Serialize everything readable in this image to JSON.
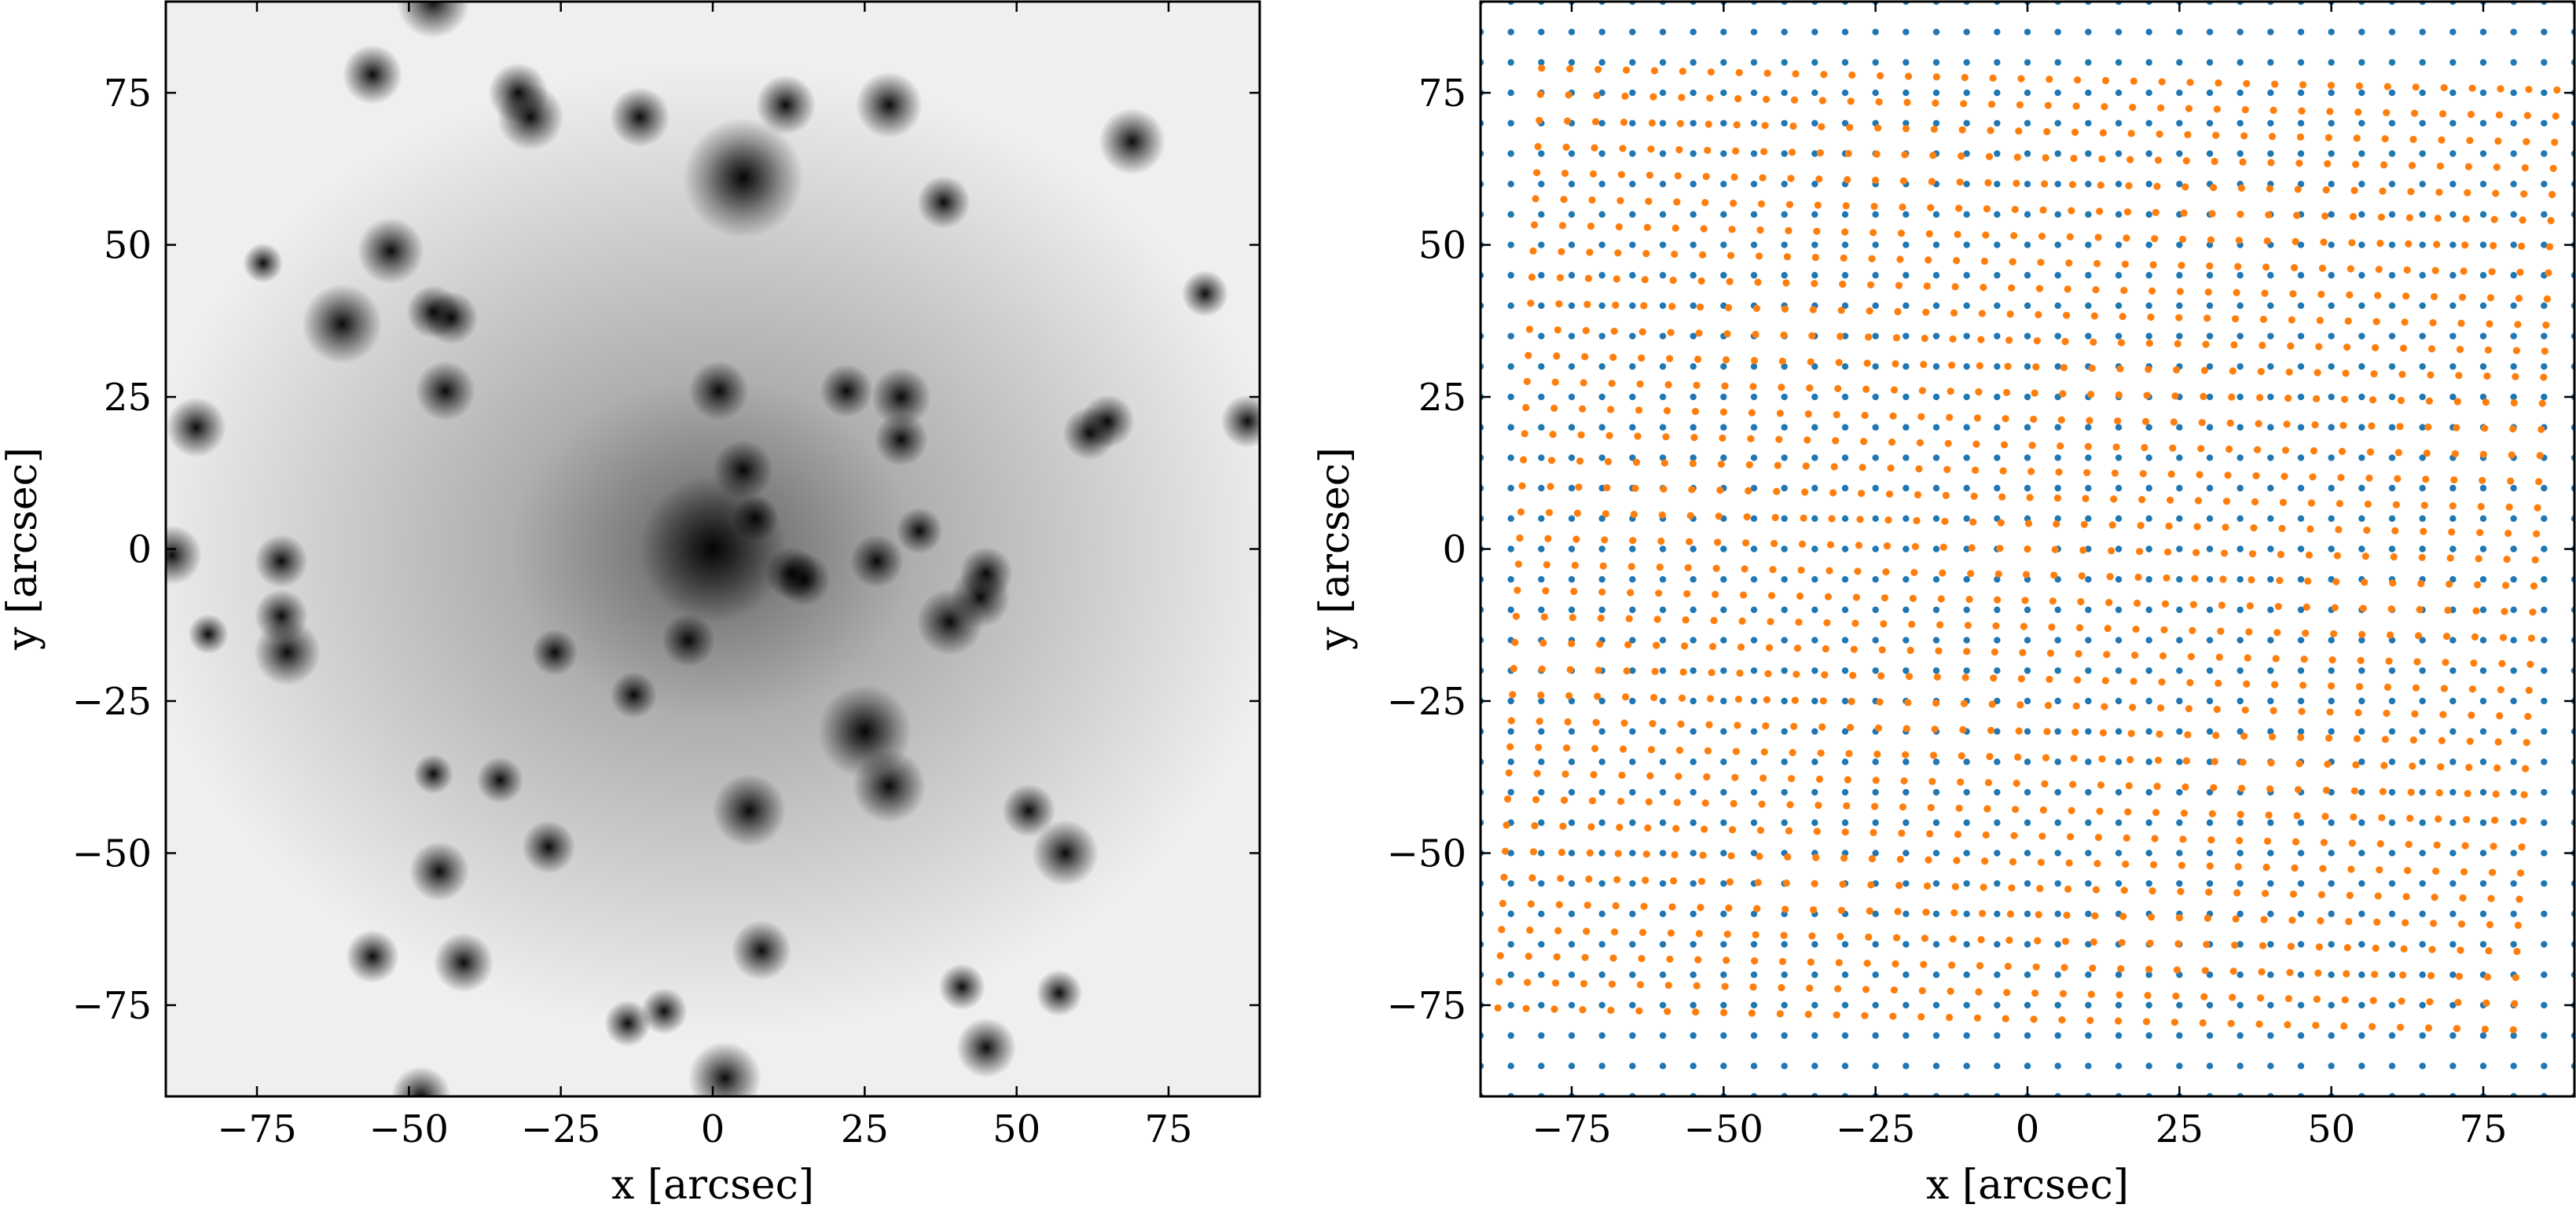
{
  "chart_data": [
    {
      "type": "heatmap",
      "title": "",
      "xlabel": "x [arcsec]",
      "ylabel": "y [arcsec]",
      "xlim": [
        -90,
        90
      ],
      "ylim": [
        -90,
        90
      ],
      "xticks": [
        -75,
        -50,
        -25,
        0,
        25,
        50,
        75
      ],
      "yticks": [
        -75,
        -50,
        -25,
        0,
        25,
        50,
        75
      ],
      "xticklabels": [
        "−75",
        "−50",
        "−25",
        "0",
        "25",
        "50",
        "75"
      ],
      "yticklabels": [
        "−75",
        "−50",
        "−25",
        "0",
        "25",
        "50",
        "75"
      ],
      "grid": false,
      "colormap": "gray_r",
      "halos": [
        {
          "x": 0,
          "y": 0,
          "rx": 95,
          "ry": 80,
          "strength": 0.6
        },
        {
          "x": 5,
          "y": 61,
          "rx": 6,
          "ry": 6,
          "strength": 0.28
        },
        {
          "x": 25,
          "y": -30,
          "rx": 5,
          "ry": 5,
          "strength": 0.25
        }
      ],
      "galaxies": [
        {
          "x": 0,
          "y": 0,
          "r": 2.2
        },
        {
          "x": 5,
          "y": 61,
          "r": 1.8
        },
        {
          "x": -46,
          "y": 90,
          "r": 1.1
        },
        {
          "x": -56,
          "y": 78,
          "r": 0.9
        },
        {
          "x": -32,
          "y": 75,
          "r": 0.9
        },
        {
          "x": -30,
          "y": 71,
          "r": 1.0
        },
        {
          "x": -12,
          "y": 71,
          "r": 0.9
        },
        {
          "x": 12,
          "y": 73,
          "r": 0.9
        },
        {
          "x": 29,
          "y": 73,
          "r": 1.0
        },
        {
          "x": 69,
          "y": 67,
          "r": 1.0
        },
        {
          "x": 38,
          "y": 57,
          "r": 0.8
        },
        {
          "x": -53,
          "y": 49,
          "r": 1.0
        },
        {
          "x": -74,
          "y": 47,
          "r": 0.6
        },
        {
          "x": -61,
          "y": 37,
          "r": 1.2
        },
        {
          "x": -46,
          "y": 39,
          "r": 0.8
        },
        {
          "x": -43,
          "y": 38,
          "r": 0.8
        },
        {
          "x": -44,
          "y": 26,
          "r": 0.9
        },
        {
          "x": 81,
          "y": 42,
          "r": 0.7
        },
        {
          "x": -85,
          "y": 20,
          "r": 0.9
        },
        {
          "x": 1,
          "y": 26,
          "r": 0.9
        },
        {
          "x": 22,
          "y": 26,
          "r": 0.8
        },
        {
          "x": 31,
          "y": 25,
          "r": 0.9
        },
        {
          "x": 31,
          "y": 18,
          "r": 0.8
        },
        {
          "x": 62,
          "y": 19,
          "r": 0.8
        },
        {
          "x": 65,
          "y": 21,
          "r": 0.8
        },
        {
          "x": 88,
          "y": 21,
          "r": 0.8
        },
        {
          "x": 5,
          "y": 13,
          "r": 0.9
        },
        {
          "x": 7,
          "y": 5,
          "r": 0.7
        },
        {
          "x": 34,
          "y": 3,
          "r": 0.7
        },
        {
          "x": -89,
          "y": -1,
          "r": 0.9
        },
        {
          "x": -71,
          "y": -2,
          "r": 0.8
        },
        {
          "x": 27,
          "y": -2,
          "r": 0.8
        },
        {
          "x": 13,
          "y": -4,
          "r": 0.8
        },
        {
          "x": 15,
          "y": -5,
          "r": 0.8
        },
        {
          "x": 45,
          "y": -4,
          "r": 0.8
        },
        {
          "x": 44,
          "y": -8,
          "r": 0.9
        },
        {
          "x": 39,
          "y": -12,
          "r": 1.0
        },
        {
          "x": -71,
          "y": -11,
          "r": 0.8
        },
        {
          "x": -83,
          "y": -14,
          "r": 0.6
        },
        {
          "x": -4,
          "y": -15,
          "r": 0.8
        },
        {
          "x": -70,
          "y": -17,
          "r": 1.0
        },
        {
          "x": -26,
          "y": -17,
          "r": 0.7
        },
        {
          "x": -13,
          "y": -24,
          "r": 0.7
        },
        {
          "x": 25,
          "y": -30,
          "r": 1.4
        },
        {
          "x": -46,
          "y": -37,
          "r": 0.6
        },
        {
          "x": 29,
          "y": -39,
          "r": 1.1
        },
        {
          "x": -35,
          "y": -38,
          "r": 0.7
        },
        {
          "x": 6,
          "y": -43,
          "r": 1.1
        },
        {
          "x": 52,
          "y": -43,
          "r": 0.8
        },
        {
          "x": -27,
          "y": -49,
          "r": 0.8
        },
        {
          "x": 58,
          "y": -50,
          "r": 1.0
        },
        {
          "x": -45,
          "y": -53,
          "r": 0.9
        },
        {
          "x": -56,
          "y": -67,
          "r": 0.8
        },
        {
          "x": -41,
          "y": -68,
          "r": 0.9
        },
        {
          "x": 8,
          "y": -66,
          "r": 0.9
        },
        {
          "x": 41,
          "y": -72,
          "r": 0.7
        },
        {
          "x": 57,
          "y": -73,
          "r": 0.7
        },
        {
          "x": -14,
          "y": -78,
          "r": 0.7
        },
        {
          "x": -8,
          "y": -76,
          "r": 0.7
        },
        {
          "x": 45,
          "y": -82,
          "r": 0.9
        },
        {
          "x": 2,
          "y": -87,
          "r": 1.1
        },
        {
          "x": -48,
          "y": -90,
          "r": 0.9
        }
      ]
    },
    {
      "type": "scatter",
      "title": "",
      "xlabel": "x [arcsec]",
      "ylabel": "y [arcsec]",
      "xlim": [
        -90,
        90
      ],
      "ylim": [
        -90,
        90
      ],
      "xticks": [
        -75,
        -50,
        -25,
        0,
        25,
        50,
        75
      ],
      "yticks": [
        -75,
        -50,
        -25,
        0,
        25,
        50,
        75
      ],
      "xticklabels": [
        "−75",
        "−50",
        "−25",
        "0",
        "25",
        "50",
        "75"
      ],
      "yticklabels": [
        "−75",
        "−50",
        "−25",
        "0",
        "25",
        "50",
        "75"
      ],
      "grid": false,
      "series": [
        {
          "color": "#1f77b4",
          "grid": {
            "start": -90,
            "stop": 90,
            "step": 5
          }
        },
        {
          "color": "#ff7f0e",
          "grid": {
            "start": -90,
            "stop": 90,
            "step": 5
          },
          "lens": {
            "center": [
              0,
              0
            ],
            "strength": 0.85,
            "core": 4
          }
        }
      ]
    }
  ]
}
